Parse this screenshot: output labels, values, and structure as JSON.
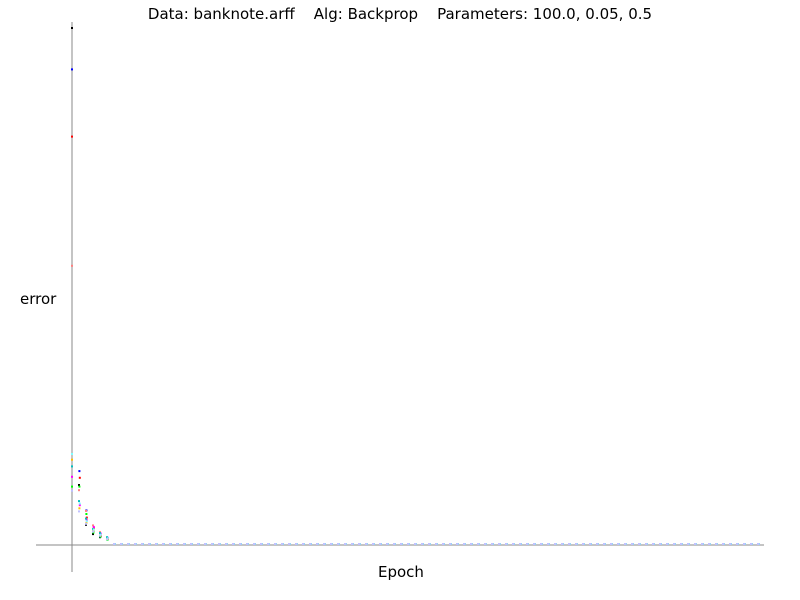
{
  "chart_data": {
    "type": "scatter",
    "title": "Data: banknote.arff    Alg: Backprop    Parameters: 100.0, 0.05, 0.5",
    "xlabel": "Epoch",
    "ylabel": "error",
    "grid": false,
    "legend": "none",
    "xlim": [
      0,
      100
    ],
    "ylim": [
      0,
      1
    ],
    "series": [
      {
        "color": "#000000",
        "values": [
          1.0,
          0.116,
          0.039,
          0.021,
          0.015,
          0.012
        ]
      },
      {
        "color": "#0000ff",
        "values": [
          0.92,
          0.143,
          0.067,
          0.027,
          0.016,
          0.011
        ]
      },
      {
        "color": "#ff0000",
        "values": [
          0.79,
          0.13,
          0.053,
          0.033,
          0.018,
          0.012
        ]
      },
      {
        "color": "#ff8080",
        "values": [
          0.54,
          0.106,
          0.066,
          0.038,
          0.025,
          0.014
        ]
      },
      {
        "color": "#00ff00",
        "values": [
          0.113,
          0.113,
          0.06,
          0.024,
          0.016,
          0.01
        ]
      },
      {
        "color": "#ff00ff",
        "values": [
          0.132,
          0.077,
          0.048,
          0.035,
          0.022,
          0.014
        ]
      },
      {
        "color": "#00c0c0",
        "values": [
          0.152,
          0.085,
          0.051,
          0.031,
          0.023,
          0.015
        ]
      },
      {
        "color": "#ffc000",
        "values": [
          0.165,
          0.071,
          0.043,
          0.028,
          0.019,
          0.012
        ]
      },
      {
        "color": "#80ffff",
        "values": [
          0.176,
          0.08,
          0.046,
          0.03,
          0.02,
          0.013
        ]
      },
      {
        "color": "#c0c0ff",
        "values": [
          0.105,
          0.065,
          0.041,
          0.026,
          0.018,
          0.011
        ]
      }
    ],
    "tail_value": 0.002
  }
}
